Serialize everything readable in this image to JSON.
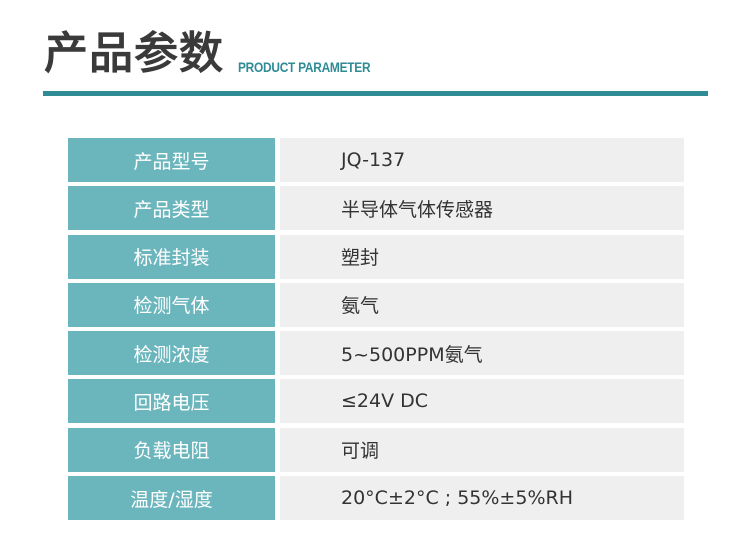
{
  "header": {
    "title": "产品参数",
    "subtitle": "PRODUCT PARAMETER",
    "accent_color": "#2f8b94"
  },
  "table": {
    "label_color": "#6bb5bd",
    "rows": [
      {
        "label": "产品型号",
        "value": "JQ-137"
      },
      {
        "label": "产品类型",
        "value": "半导体气体传感器"
      },
      {
        "label": "标准封装",
        "value": "塑封"
      },
      {
        "label": "检测气体",
        "value": "氨气"
      },
      {
        "label": "检测浓度",
        "value": "5~500PPM氨气"
      },
      {
        "label": "回路电压",
        "value": "≤24V DC"
      },
      {
        "label": "负载电阻",
        "value": "可调"
      },
      {
        "label": "温度/湿度",
        "value": "20°C±2°C ; 55%±5%RH"
      }
    ]
  }
}
